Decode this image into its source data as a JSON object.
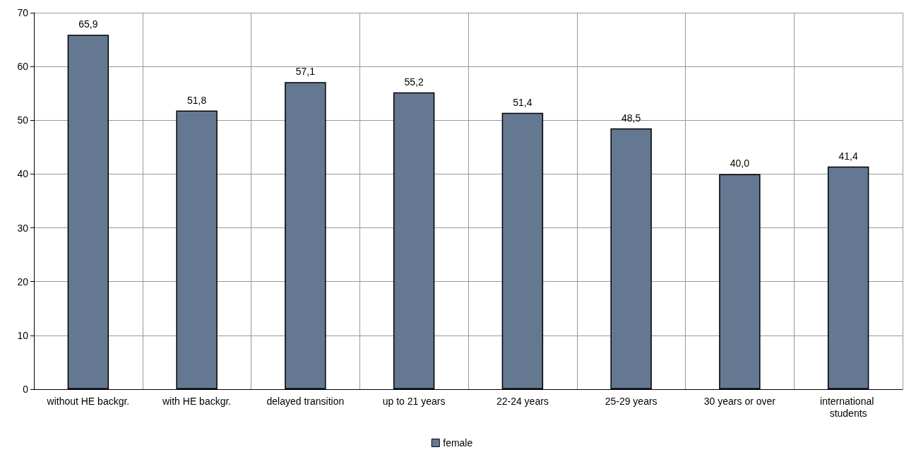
{
  "chart_data": {
    "type": "bar",
    "categories": [
      "without HE backgr.",
      "with HE backgr.",
      "delayed transition",
      "up to 21 years",
      "22-24 years",
      "25-29 years",
      "30 years or over",
      "international students"
    ],
    "series": [
      {
        "name": "female",
        "color": "#647892",
        "values": [
          65.9,
          51.8,
          57.1,
          55.2,
          51.4,
          48.5,
          40.0,
          41.4
        ],
        "value_labels": [
          "65,9",
          "51,8",
          "57,1",
          "55,2",
          "51,4",
          "48,5",
          "40,0",
          "41,4"
        ]
      }
    ],
    "ylim": [
      0,
      70
    ],
    "yticks": [
      0,
      10,
      20,
      30,
      40,
      50,
      60,
      70
    ],
    "grid": true,
    "legend": "bottom"
  }
}
